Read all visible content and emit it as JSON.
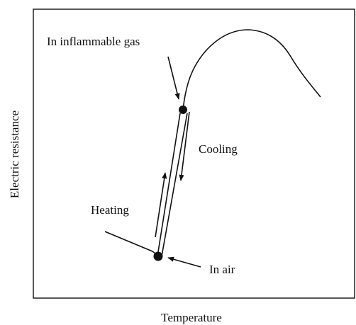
{
  "diagram": {
    "x_axis_label": "Temperature",
    "y_axis_label": "Electric resistance",
    "annotations": [
      "In inflammable gas",
      "Cooling",
      "Heating",
      "In air"
    ]
  }
}
